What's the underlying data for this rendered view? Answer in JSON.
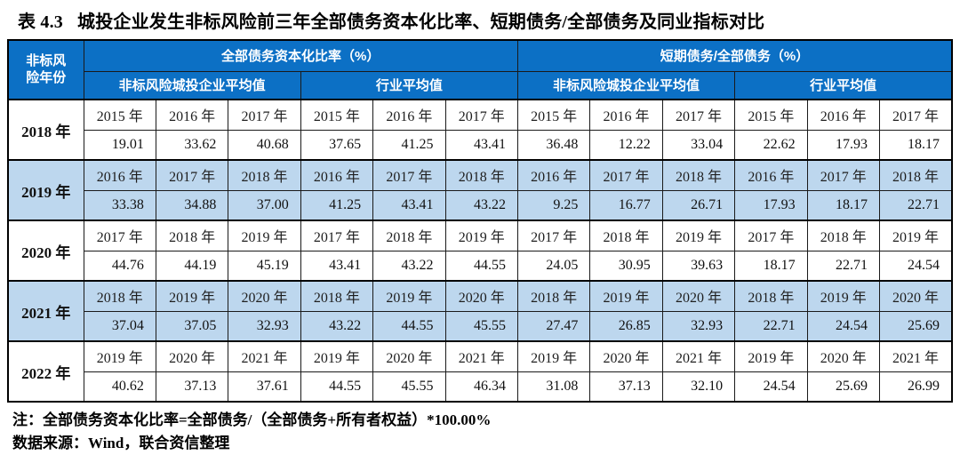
{
  "title": {
    "label": "表 4.3",
    "text": "城投企业发生非标风险前三年全部债务资本化比率、短期债务/全部债务及同业指标对比"
  },
  "table": {
    "row_header": "非标风险年份",
    "groups": [
      {
        "label": "全部债务资本化比率（%）",
        "subgroups": [
          "非标风险城投企业平均值",
          "行业平均值"
        ]
      },
      {
        "label": "短期债务/全部债务（%）",
        "subgroups": [
          "非标风险城投企业平均值",
          "行业平均值"
        ]
      }
    ],
    "blocks": [
      {
        "year": "2018 年",
        "periods": [
          "2015 年",
          "2016 年",
          "2017 年",
          "2015 年",
          "2016 年",
          "2017 年",
          "2015 年",
          "2016 年",
          "2017 年",
          "2015 年",
          "2016 年",
          "2017 年"
        ],
        "values": [
          "19.01",
          "33.62",
          "40.68",
          "37.65",
          "41.25",
          "43.41",
          "36.48",
          "12.22",
          "33.04",
          "22.62",
          "17.93",
          "18.17"
        ]
      },
      {
        "year": "2019 年",
        "periods": [
          "2016 年",
          "2017 年",
          "2018 年",
          "2016 年",
          "2017 年",
          "2018 年",
          "2016 年",
          "2017 年",
          "2018 年",
          "2016 年",
          "2017 年",
          "2018 年"
        ],
        "values": [
          "33.38",
          "34.88",
          "37.00",
          "41.25",
          "43.41",
          "43.22",
          "9.25",
          "16.77",
          "26.71",
          "17.93",
          "18.17",
          "22.71"
        ]
      },
      {
        "year": "2020 年",
        "periods": [
          "2017 年",
          "2018 年",
          "2019 年",
          "2017 年",
          "2018 年",
          "2019 年",
          "2017 年",
          "2018 年",
          "2019 年",
          "2017 年",
          "2018 年",
          "2019 年"
        ],
        "values": [
          "44.76",
          "44.19",
          "45.19",
          "43.41",
          "43.22",
          "44.55",
          "24.05",
          "30.95",
          "39.63",
          "18.17",
          "22.71",
          "24.54"
        ]
      },
      {
        "year": "2021 年",
        "periods": [
          "2018 年",
          "2019 年",
          "2020 年",
          "2018 年",
          "2019 年",
          "2020 年",
          "2018 年",
          "2019 年",
          "2020 年",
          "2018 年",
          "2019 年",
          "2020 年"
        ],
        "values": [
          "37.04",
          "37.05",
          "32.93",
          "43.22",
          "44.55",
          "45.55",
          "27.47",
          "26.85",
          "32.93",
          "22.71",
          "24.54",
          "25.69"
        ]
      },
      {
        "year": "2022 年",
        "periods": [
          "2019 年",
          "2020 年",
          "2021 年",
          "2019 年",
          "2020 年",
          "2021 年",
          "2019 年",
          "2020 年",
          "2021 年",
          "2019 年",
          "2020 年",
          "2021 年"
        ],
        "values": [
          "40.62",
          "37.13",
          "37.61",
          "44.55",
          "45.55",
          "46.34",
          "31.08",
          "37.13",
          "32.10",
          "24.54",
          "25.69",
          "26.99"
        ]
      }
    ]
  },
  "notes": [
    "注：全部债务资本化比率=全部债务/（全部债务+所有者权益）*100.00%",
    "数据来源：Wind，联合资信整理"
  ],
  "colors": {
    "header_blue": "#0c70c5",
    "stripe_blue": "#bdd7ee",
    "border_dark": "#000000",
    "text": "#111111"
  }
}
